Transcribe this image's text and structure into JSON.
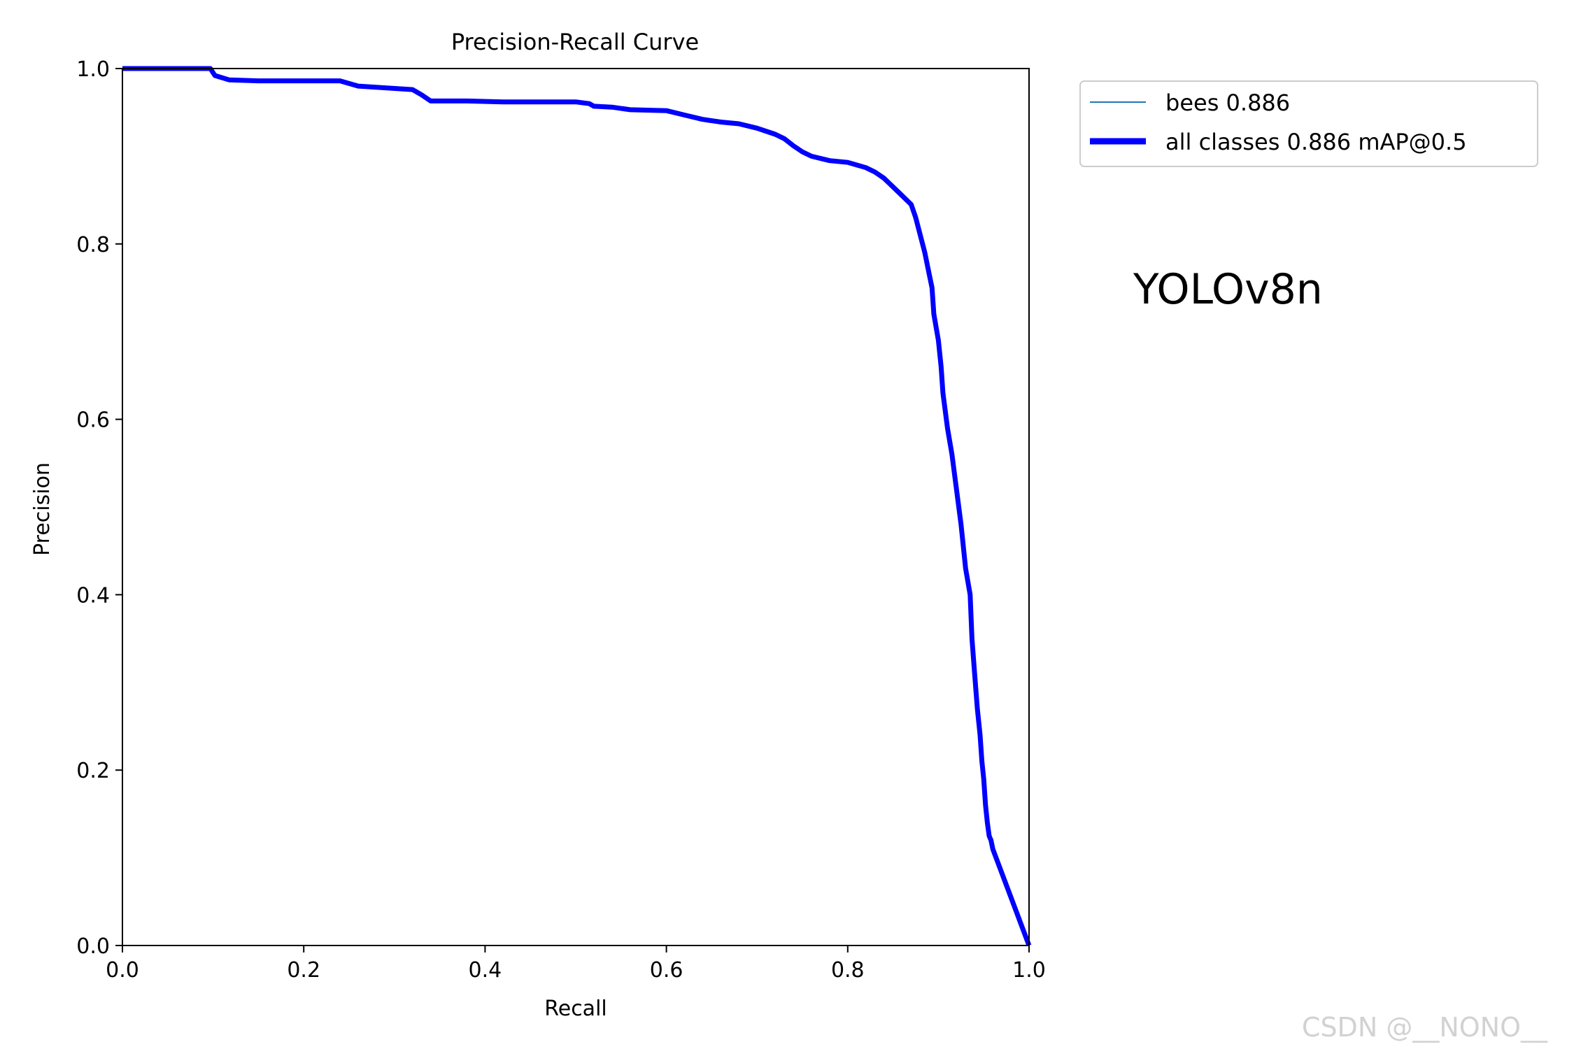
{
  "chart_data": {
    "type": "line",
    "title": "Precision-Recall Curve",
    "xlabel": "Recall",
    "ylabel": "Precision",
    "xlim": [
      0,
      1
    ],
    "ylim": [
      0,
      1
    ],
    "xticks": [
      "0.0",
      "0.2",
      "0.4",
      "0.6",
      "0.8",
      "1.0"
    ],
    "yticks": [
      "0.0",
      "0.2",
      "0.4",
      "0.6",
      "0.8",
      "1.0"
    ],
    "grid": false,
    "legend_position": "outside top-right",
    "series": [
      {
        "name": "bees 0.886",
        "color": "#1f77b4",
        "x": [
          0.0,
          0.097,
          0.102,
          0.118,
          0.15,
          0.24,
          0.26,
          0.32,
          0.33,
          0.34,
          0.38,
          0.42,
          0.5,
          0.515,
          0.52,
          0.54,
          0.56,
          0.6,
          0.62,
          0.64,
          0.66,
          0.68,
          0.7,
          0.72,
          0.73,
          0.74,
          0.75,
          0.76,
          0.78,
          0.8,
          0.82,
          0.83,
          0.84,
          0.85,
          0.86,
          0.87,
          0.875,
          0.88,
          0.885,
          0.89,
          0.893,
          0.895,
          0.9,
          0.903,
          0.905,
          0.91,
          0.915,
          0.92,
          0.925,
          0.93,
          0.935,
          0.937,
          0.94,
          0.943,
          0.946,
          0.948,
          0.95,
          0.952,
          0.954,
          0.956,
          0.958,
          0.96,
          1.0
        ],
        "y": [
          1.0,
          1.0,
          0.992,
          0.987,
          0.986,
          0.986,
          0.98,
          0.976,
          0.97,
          0.963,
          0.963,
          0.962,
          0.962,
          0.96,
          0.957,
          0.956,
          0.953,
          0.952,
          0.947,
          0.942,
          0.939,
          0.937,
          0.932,
          0.925,
          0.92,
          0.912,
          0.905,
          0.9,
          0.895,
          0.893,
          0.887,
          0.882,
          0.875,
          0.865,
          0.855,
          0.845,
          0.83,
          0.81,
          0.79,
          0.765,
          0.75,
          0.72,
          0.69,
          0.66,
          0.63,
          0.59,
          0.56,
          0.52,
          0.48,
          0.43,
          0.4,
          0.35,
          0.31,
          0.27,
          0.24,
          0.21,
          0.19,
          0.16,
          0.14,
          0.125,
          0.12,
          0.11,
          0.0
        ]
      },
      {
        "name": "all classes 0.886 mAP@0.5",
        "color": "#0000ff",
        "x": [
          0.0,
          0.097,
          0.102,
          0.118,
          0.15,
          0.24,
          0.26,
          0.32,
          0.33,
          0.34,
          0.38,
          0.42,
          0.5,
          0.515,
          0.52,
          0.54,
          0.56,
          0.6,
          0.62,
          0.64,
          0.66,
          0.68,
          0.7,
          0.72,
          0.73,
          0.74,
          0.75,
          0.76,
          0.78,
          0.8,
          0.82,
          0.83,
          0.84,
          0.85,
          0.86,
          0.87,
          0.875,
          0.88,
          0.885,
          0.89,
          0.893,
          0.895,
          0.9,
          0.903,
          0.905,
          0.91,
          0.915,
          0.92,
          0.925,
          0.93,
          0.935,
          0.937,
          0.94,
          0.943,
          0.946,
          0.948,
          0.95,
          0.952,
          0.954,
          0.956,
          0.958,
          0.96,
          1.0
        ],
        "y": [
          1.0,
          1.0,
          0.992,
          0.987,
          0.986,
          0.986,
          0.98,
          0.976,
          0.97,
          0.963,
          0.963,
          0.962,
          0.962,
          0.96,
          0.957,
          0.956,
          0.953,
          0.952,
          0.947,
          0.942,
          0.939,
          0.937,
          0.932,
          0.925,
          0.92,
          0.912,
          0.905,
          0.9,
          0.895,
          0.893,
          0.887,
          0.882,
          0.875,
          0.865,
          0.855,
          0.845,
          0.83,
          0.81,
          0.79,
          0.765,
          0.75,
          0.72,
          0.69,
          0.66,
          0.63,
          0.59,
          0.56,
          0.52,
          0.48,
          0.43,
          0.4,
          0.35,
          0.31,
          0.27,
          0.24,
          0.21,
          0.19,
          0.16,
          0.14,
          0.125,
          0.12,
          0.11,
          0.0
        ]
      }
    ],
    "annotation": "YOLOv8n"
  },
  "watermark": "CSDN @__NONO__"
}
